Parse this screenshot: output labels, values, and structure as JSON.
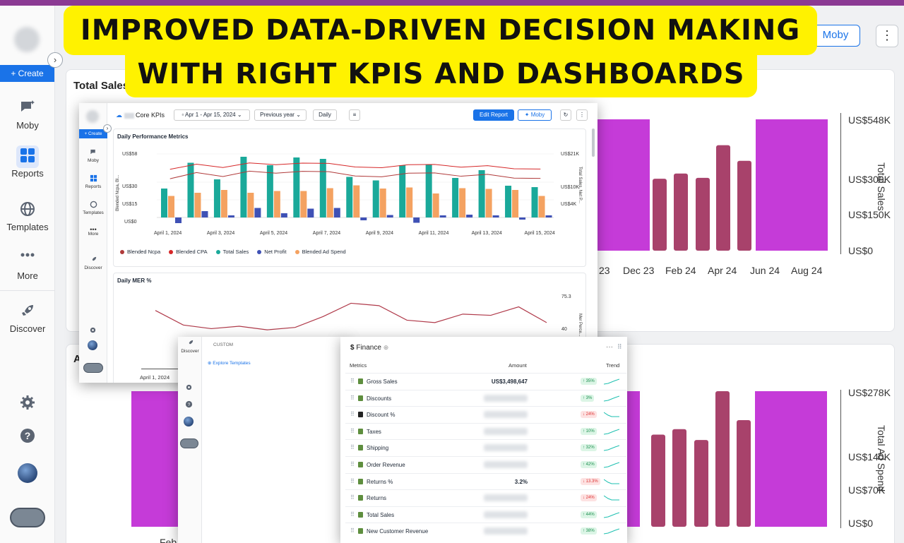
{
  "banner": {
    "line1": "IMPROVED DATA-DRIVEN DECISION MAKING",
    "line2": "WITH RIGHT KPIS AND DASHBOARDS"
  },
  "header": {
    "moby_button": "Moby"
  },
  "sidebar": {
    "create": "+ Create",
    "items": [
      {
        "label": "Moby",
        "icon": "moby-chat-icon"
      },
      {
        "label": "Reports",
        "icon": "grid-icon"
      },
      {
        "label": "Templates",
        "icon": "globe-icon"
      },
      {
        "label": "More",
        "icon": "dots-icon"
      },
      {
        "label": "Discover",
        "icon": "rocket-icon"
      }
    ]
  },
  "background_panel_top": {
    "title": "Total Sales",
    "y_ticks": [
      "US$548K",
      "US$300K",
      "US$150K",
      "US$0"
    ],
    "y_axis_label": "Total Sales",
    "x_ticks": [
      "23",
      "Dec 23",
      "Feb 24",
      "Apr 24",
      "Jun 24",
      "Aug 24"
    ]
  },
  "background_panel_bottom": {
    "title_fragment": "A",
    "y_ticks": [
      "US$278K",
      "US$140K",
      "US$70K",
      "US$0"
    ],
    "y_axis_label": "Total Ad Spend",
    "x_ticks": [
      "Feb"
    ]
  },
  "inner_shot": {
    "nav": {
      "create": "+ Create",
      "items": [
        "Moby",
        "Reports",
        "Templates",
        "More",
        "Discover"
      ]
    },
    "title": "Core KPIs",
    "date_range": "Apr 1 - Apr 15, 2024",
    "compare": "Previous year",
    "granularity": "Daily",
    "edit_report": "Edit Report",
    "moby": "Moby",
    "chart1": {
      "title": "Daily Performance Metrics",
      "left_ticks": [
        "US$58",
        "US$30",
        "US$15",
        "US$0"
      ],
      "left_label": "Blended Ncpa, Bl...",
      "right_ticks": [
        "US$21K",
        "US$10K",
        "US$4K"
      ],
      "right_label": "Total Sales, Net P...",
      "x_ticks": [
        "April 1, 2024",
        "April 3, 2024",
        "April 5, 2024",
        "April 7, 2024",
        "April 9, 2024",
        "April 11, 2024",
        "April 13, 2024",
        "April 15, 2024"
      ],
      "legend": [
        {
          "label": "Blended Ncpa",
          "color": "#b03a3a"
        },
        {
          "label": "Blended CPA",
          "color": "#d62728"
        },
        {
          "label": "Total Sales",
          "color": "#1aa99a"
        },
        {
          "label": "Net Profit",
          "color": "#3f51b5"
        },
        {
          "label": "Blended Ad Spend",
          "color": "#f4a261"
        }
      ]
    },
    "chart2": {
      "title": "Daily MER %",
      "right_ticks": [
        "75.3",
        "40"
      ],
      "right_label": "Mer Perce...",
      "x_tick": "April 1, 2024"
    }
  },
  "chart_data": [
    {
      "type": "bar",
      "title": "Daily Performance Metrics",
      "categories": [
        "April 1, 2024",
        "April 2, 2024",
        "April 3, 2024",
        "April 4, 2024",
        "April 5, 2024",
        "April 6, 2024",
        "April 7, 2024",
        "April 8, 2024",
        "April 9, 2024",
        "April 10, 2024",
        "April 11, 2024",
        "April 12, 2024",
        "April 13, 2024",
        "April 14, 2024",
        "April 15, 2024"
      ],
      "series": [
        {
          "name": "Total Sales",
          "values": [
            8.2,
            15.5,
            10.8,
            17.2,
            14.8,
            17.0,
            16.6,
            11.5,
            10.5,
            14.8,
            15.1,
            11.2,
            13.4,
            9.0,
            8.6
          ]
        },
        {
          "name": "Blended Ad Spend",
          "values": [
            6.1,
            7.0,
            7.8,
            7.0,
            7.5,
            7.5,
            8.3,
            9.1,
            8.2,
            8.5,
            6.8,
            8.3,
            8.1,
            7.8,
            6.1
          ]
        },
        {
          "name": "Net Profit",
          "values": [
            -1.6,
            1.8,
            0.6,
            2.7,
            1.2,
            2.5,
            2.7,
            -0.8,
            0.7,
            -1.5,
            0.6,
            0.8,
            0.6,
            -0.6,
            0.6
          ]
        }
      ],
      "ylabel": "Blended Ncpa, Bl...",
      "ylim": [
        0,
        58
      ]
    },
    {
      "type": "line",
      "title": "Daily MER %",
      "ylabel": "Mer Perce...",
      "values": [
        60,
        48,
        45,
        47,
        44,
        46,
        55,
        66,
        64,
        52,
        50,
        57,
        56,
        63,
        50
      ]
    },
    {
      "type": "bar",
      "title": "Total Sales",
      "ylabel": "Total Sales",
      "categories": [
        "",
        "",
        "Dec 23",
        "",
        "Feb 24",
        "",
        "Apr 24",
        "",
        "Jun 24",
        "",
        "Aug 24"
      ],
      "values": [
        548,
        548,
        548,
        300,
        322,
        304,
        440,
        375,
        548,
        548,
        548
      ],
      "ylim": [
        0,
        548
      ]
    }
  ],
  "custom": {
    "label": "CUSTOM",
    "explore": "Explore Templates",
    "discover": "Discover"
  },
  "finance": {
    "title": "Finance",
    "col_metrics": "Metrics",
    "col_amount": "Amount",
    "col_trend": "Trend",
    "rows": [
      {
        "name": "Gross Sales",
        "amount": "US$3,498,647",
        "change": "35%",
        "dir": "up"
      },
      {
        "name": "Discounts",
        "amount": "",
        "change": "3%",
        "dir": "up"
      },
      {
        "name": "Discount %",
        "amount": "",
        "change": "24%",
        "dir": "down"
      },
      {
        "name": "Taxes",
        "amount": "",
        "change": "10%",
        "dir": "up"
      },
      {
        "name": "Shipping",
        "amount": "",
        "change": "32%",
        "dir": "up"
      },
      {
        "name": "Order Revenue",
        "amount": "",
        "change": "42%",
        "dir": "up"
      },
      {
        "name": "Returns %",
        "amount": "3.2%",
        "change": "13.3%",
        "dir": "down"
      },
      {
        "name": "Returns",
        "amount": "",
        "change": "24%",
        "dir": "down"
      },
      {
        "name": "Total Sales",
        "amount": "",
        "change": "44%",
        "dir": "up"
      },
      {
        "name": "New Customer Revenue",
        "amount": "",
        "change": "38%",
        "dir": "up"
      }
    ]
  }
}
